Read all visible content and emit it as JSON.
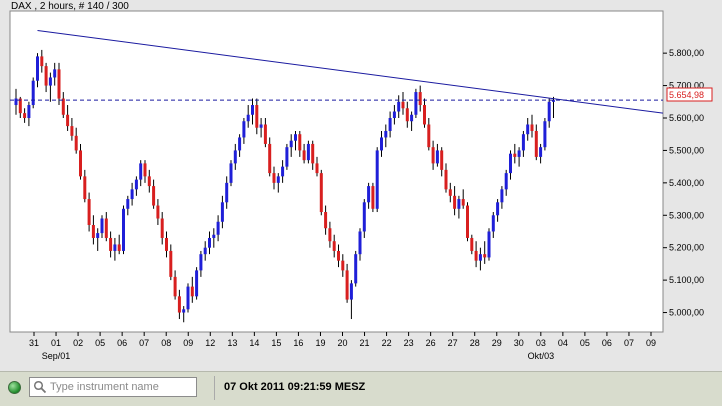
{
  "header": {
    "title": "DAX , 2 hours, # 140 / 300"
  },
  "price_label": "5.654,98",
  "status_bar": {
    "search_placeholder": "Type instrument name",
    "datetime": "07 Okt 2011 09:21:59 MESZ"
  },
  "colors": {
    "up": "#1f1fd8",
    "down": "#d81f1f",
    "trend": "#1a1aa0",
    "price_line": "#1a1aa0",
    "plot_bg": "#ffffff"
  },
  "chart_data": {
    "type": "candlestick",
    "instrument": "DAX",
    "interval": "2 hours",
    "ylim": [
      4940,
      5930
    ],
    "yticks": [
      "5.800,00",
      "5.700,00",
      "5.600,00",
      "5.500,00",
      "5.400,00",
      "5.300,00",
      "5.200,00",
      "5.100,00",
      "5.000,00"
    ],
    "ytick_values": [
      5800,
      5700,
      5600,
      5500,
      5400,
      5300,
      5200,
      5100,
      5000
    ],
    "xticks": [
      "31",
      "01",
      "02",
      "05",
      "06",
      "07",
      "08",
      "09",
      "12",
      "13",
      "14",
      "15",
      "16",
      "19",
      "20",
      "21",
      "22",
      "23",
      "26",
      "27",
      "28",
      "29",
      "30",
      "03",
      "04",
      "05",
      "06",
      "07",
      "09"
    ],
    "month_labels": [
      {
        "label": "Sep/01",
        "day": "01"
      },
      {
        "label": "Okt/03",
        "day": "03"
      }
    ],
    "current_price": 5654.98,
    "trendline": [
      {
        "bar": 5,
        "value": 5870
      },
      {
        "bar": 139,
        "value": 5635
      }
    ],
    "ohlc": [
      [
        5640,
        5690,
        5610,
        5660
      ],
      [
        5660,
        5665,
        5600,
        5615
      ],
      [
        5615,
        5630,
        5585,
        5600
      ],
      [
        5600,
        5650,
        5575,
        5640
      ],
      [
        5640,
        5725,
        5630,
        5715
      ],
      [
        5715,
        5800,
        5695,
        5790
      ],
      [
        5790,
        5810,
        5740,
        5760
      ],
      [
        5760,
        5770,
        5680,
        5700
      ],
      [
        5700,
        5740,
        5650,
        5725
      ],
      [
        5725,
        5770,
        5700,
        5750
      ],
      [
        5750,
        5770,
        5640,
        5660
      ],
      [
        5660,
        5680,
        5600,
        5610
      ],
      [
        5610,
        5640,
        5560,
        5575
      ],
      [
        5575,
        5600,
        5530,
        5545
      ],
      [
        5545,
        5570,
        5490,
        5500
      ],
      [
        5500,
        5520,
        5410,
        5420
      ],
      [
        5420,
        5440,
        5340,
        5350
      ],
      [
        5350,
        5370,
        5250,
        5270
      ],
      [
        5270,
        5300,
        5210,
        5230
      ],
      [
        5230,
        5260,
        5190,
        5245
      ],
      [
        5245,
        5300,
        5230,
        5290
      ],
      [
        5290,
        5310,
        5220,
        5230
      ],
      [
        5230,
        5250,
        5170,
        5190
      ],
      [
        5190,
        5230,
        5160,
        5210
      ],
      [
        5210,
        5240,
        5180,
        5190
      ],
      [
        5190,
        5330,
        5180,
        5320
      ],
      [
        5320,
        5360,
        5300,
        5350
      ],
      [
        5350,
        5400,
        5330,
        5380
      ],
      [
        5380,
        5420,
        5360,
        5410
      ],
      [
        5410,
        5470,
        5390,
        5460
      ],
      [
        5460,
        5470,
        5400,
        5420
      ],
      [
        5420,
        5440,
        5370,
        5390
      ],
      [
        5390,
        5410,
        5320,
        5330
      ],
      [
        5330,
        5350,
        5270,
        5290
      ],
      [
        5290,
        5310,
        5210,
        5230
      ],
      [
        5230,
        5250,
        5170,
        5190
      ],
      [
        5190,
        5210,
        5100,
        5110
      ],
      [
        5110,
        5130,
        5040,
        5050
      ],
      [
        5050,
        5070,
        4980,
        5000
      ],
      [
        5000,
        5020,
        4970,
        5010
      ],
      [
        5010,
        5090,
        5000,
        5080
      ],
      [
        5080,
        5110,
        5030,
        5050
      ],
      [
        5050,
        5140,
        5040,
        5130
      ],
      [
        5130,
        5190,
        5110,
        5180
      ],
      [
        5180,
        5220,
        5160,
        5200
      ],
      [
        5200,
        5250,
        5180,
        5230
      ],
      [
        5230,
        5260,
        5200,
        5240
      ],
      [
        5240,
        5300,
        5220,
        5280
      ],
      [
        5280,
        5360,
        5260,
        5340
      ],
      [
        5340,
        5420,
        5320,
        5400
      ],
      [
        5400,
        5470,
        5390,
        5460
      ],
      [
        5460,
        5520,
        5440,
        5500
      ],
      [
        5500,
        5550,
        5480,
        5540
      ],
      [
        5540,
        5600,
        5520,
        5590
      ],
      [
        5590,
        5640,
        5570,
        5610
      ],
      [
        5610,
        5660,
        5580,
        5640
      ],
      [
        5640,
        5660,
        5550,
        5570
      ],
      [
        5570,
        5600,
        5540,
        5580
      ],
      [
        5580,
        5600,
        5510,
        5520
      ],
      [
        5520,
        5540,
        5420,
        5430
      ],
      [
        5430,
        5450,
        5380,
        5400
      ],
      [
        5400,
        5430,
        5370,
        5420
      ],
      [
        5420,
        5470,
        5400,
        5450
      ],
      [
        5450,
        5520,
        5440,
        5510
      ],
      [
        5510,
        5550,
        5480,
        5530
      ],
      [
        5530,
        5560,
        5500,
        5550
      ],
      [
        5550,
        5560,
        5480,
        5500
      ],
      [
        5500,
        5520,
        5460,
        5470
      ],
      [
        5470,
        5530,
        5460,
        5520
      ],
      [
        5520,
        5530,
        5440,
        5460
      ],
      [
        5460,
        5480,
        5420,
        5430
      ],
      [
        5430,
        5440,
        5300,
        5310
      ],
      [
        5310,
        5330,
        5240,
        5260
      ],
      [
        5260,
        5280,
        5200,
        5220
      ],
      [
        5220,
        5240,
        5170,
        5190
      ],
      [
        5190,
        5210,
        5140,
        5160
      ],
      [
        5160,
        5180,
        5110,
        5130
      ],
      [
        5130,
        5150,
        5030,
        5040
      ],
      [
        5040,
        5100,
        4980,
        5090
      ],
      [
        5090,
        5190,
        5080,
        5180
      ],
      [
        5180,
        5260,
        5160,
        5250
      ],
      [
        5250,
        5350,
        5230,
        5340
      ],
      [
        5340,
        5400,
        5320,
        5390
      ],
      [
        5390,
        5400,
        5310,
        5320
      ],
      [
        5320,
        5510,
        5310,
        5500
      ],
      [
        5500,
        5560,
        5480,
        5540
      ],
      [
        5540,
        5580,
        5510,
        5560
      ],
      [
        5560,
        5620,
        5540,
        5600
      ],
      [
        5600,
        5640,
        5580,
        5620
      ],
      [
        5620,
        5670,
        5600,
        5650
      ],
      [
        5650,
        5680,
        5610,
        5630
      ],
      [
        5630,
        5650,
        5570,
        5590
      ],
      [
        5590,
        5620,
        5560,
        5610
      ],
      [
        5610,
        5690,
        5600,
        5680
      ],
      [
        5680,
        5700,
        5620,
        5640
      ],
      [
        5640,
        5660,
        5570,
        5580
      ],
      [
        5580,
        5600,
        5500,
        5510
      ],
      [
        5510,
        5530,
        5440,
        5460
      ],
      [
        5460,
        5520,
        5450,
        5500
      ],
      [
        5500,
        5510,
        5420,
        5440
      ],
      [
        5440,
        5460,
        5370,
        5380
      ],
      [
        5380,
        5400,
        5340,
        5360
      ],
      [
        5360,
        5390,
        5300,
        5320
      ],
      [
        5320,
        5360,
        5290,
        5350
      ],
      [
        5350,
        5380,
        5320,
        5330
      ],
      [
        5330,
        5340,
        5220,
        5230
      ],
      [
        5230,
        5240,
        5180,
        5190
      ],
      [
        5190,
        5220,
        5140,
        5160
      ],
      [
        5160,
        5200,
        5130,
        5180
      ],
      [
        5180,
        5220,
        5150,
        5170
      ],
      [
        5170,
        5260,
        5160,
        5250
      ],
      [
        5250,
        5310,
        5230,
        5300
      ],
      [
        5300,
        5350,
        5280,
        5340
      ],
      [
        5340,
        5390,
        5320,
        5380
      ],
      [
        5380,
        5440,
        5360,
        5430
      ],
      [
        5430,
        5500,
        5410,
        5490
      ],
      [
        5490,
        5520,
        5460,
        5480
      ],
      [
        5480,
        5510,
        5450,
        5500
      ],
      [
        5500,
        5560,
        5480,
        5550
      ],
      [
        5550,
        5600,
        5530,
        5580
      ],
      [
        5580,
        5610,
        5540,
        5560
      ],
      [
        5560,
        5580,
        5470,
        5480
      ],
      [
        5480,
        5520,
        5460,
        5510
      ],
      [
        5510,
        5600,
        5500,
        5590
      ],
      [
        5590,
        5660,
        5570,
        5650
      ],
      [
        5650,
        5665,
        5600,
        5655
      ]
    ]
  }
}
